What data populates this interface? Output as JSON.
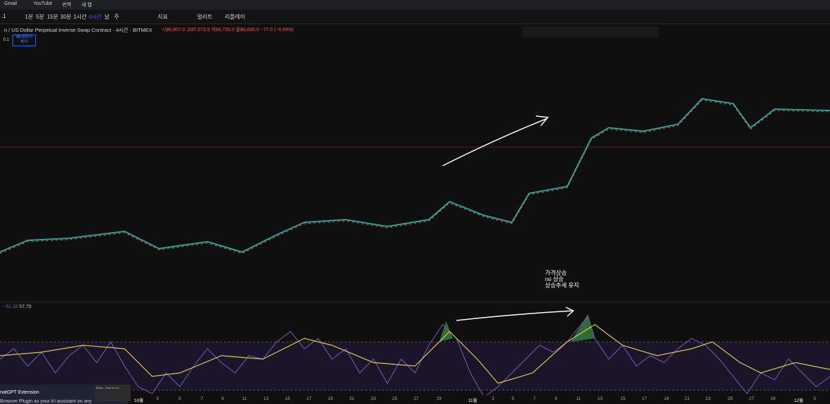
{
  "bookmarks": [
    "Gmail",
    "YouTube",
    "번역",
    "새 탭"
  ],
  "toolbar": {
    "symbol": ".1",
    "intervals": [
      "1분",
      "5분",
      "15분",
      "30분",
      "1시간",
      "4시간",
      "날",
      "주"
    ],
    "indicators": "지표",
    "alerts": "얼러트",
    "replay": "리플레이"
  },
  "symbol": {
    "title": "n / US Dollar Perpetual Inverse Swap Contract · 4시간 · BITMEX",
    "ohlc": "시86,907.0 고87,073.5 저86,735.5 종86,830.0 −77.0 (−0.09%)",
    "qty": "0.1",
    "price_box": "86,830.0",
    "price_box_sub": "바이"
  },
  "annotation": {
    "lines": [
      "가격상승",
      "rsi 상승",
      "상승추세 유지"
    ]
  },
  "rsi": {
    "legend_prefix": "- 51.18",
    "legend_value": "57.75"
  },
  "time_axis": {
    "labels": [
      "10월",
      "3",
      "5",
      "7",
      "9",
      "11",
      "13",
      "15",
      "17",
      "19",
      "21",
      "23",
      "25",
      "27",
      "29",
      "11월",
      "3",
      "5",
      "7",
      "9",
      "11",
      "13",
      "15",
      "17",
      "19",
      "21",
      "23",
      "25",
      "27",
      "29",
      "12월",
      "3"
    ]
  },
  "extension": {
    "title": "natGPT Extension",
    "text": "Browser Plugin as your AI assistant on any",
    "popup": "Relax - Free AI Ch"
  }
}
